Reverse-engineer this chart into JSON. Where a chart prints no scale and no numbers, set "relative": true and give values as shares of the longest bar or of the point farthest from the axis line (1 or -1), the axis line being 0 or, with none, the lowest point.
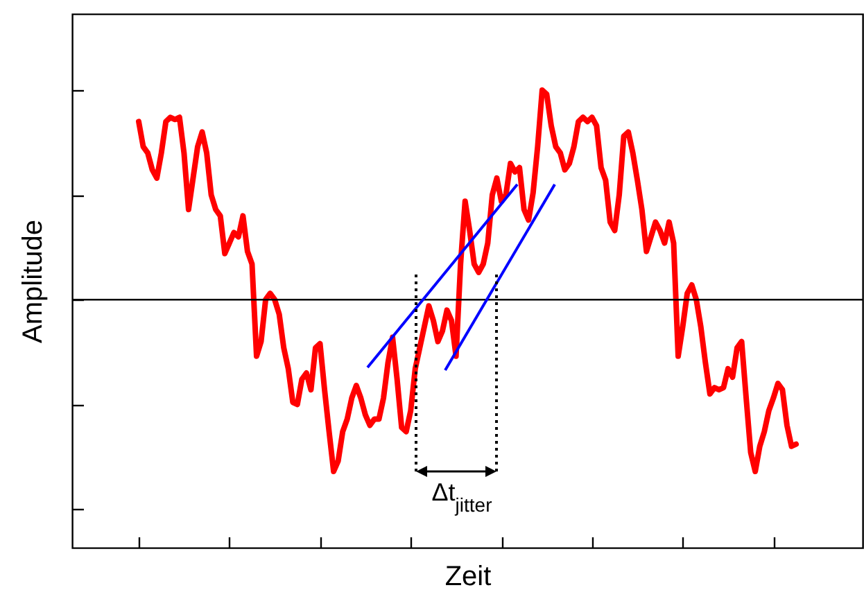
{
  "chart_data": {
    "type": "line",
    "relative": true,
    "xlabel": "Zeit",
    "ylabel": "Amplitude",
    "categories": [
      null,
      null,
      null,
      null,
      null,
      null,
      null,
      null,
      null,
      null,
      null,
      null,
      null,
      null,
      null,
      null,
      null,
      null,
      null,
      null,
      null,
      null,
      null,
      null,
      null,
      null,
      null,
      null,
      null,
      null,
      null,
      null,
      null,
      null,
      null,
      null,
      null,
      null,
      null,
      null,
      null,
      null,
      null,
      null,
      null,
      null,
      null,
      null,
      null,
      null,
      null,
      null,
      null,
      null,
      null,
      null,
      null,
      null,
      null,
      null,
      null,
      null,
      null,
      null,
      null,
      null,
      null,
      null,
      null,
      null,
      null,
      null,
      null,
      null,
      null,
      null,
      null,
      null,
      null,
      null,
      null,
      null,
      null,
      null,
      null,
      null,
      null,
      null,
      null,
      null,
      null,
      null,
      null,
      null,
      null,
      null,
      null,
      null,
      null,
      null,
      null,
      null,
      null,
      null,
      null,
      null,
      null,
      null,
      null,
      null,
      null,
      null,
      null,
      null,
      null,
      null,
      null,
      null,
      null,
      null,
      null,
      null,
      null,
      null,
      null,
      null,
      null,
      null,
      null,
      null,
      null,
      null,
      null,
      null,
      null,
      null,
      null,
      null,
      null,
      null,
      null,
      null,
      null,
      null,
      null,
      null
    ],
    "series": [
      {
        "color": "#ff0000",
        "values": [
          0.85,
          0.73,
          0.7,
          0.62,
          0.58,
          0.7,
          0.85,
          0.87,
          0.86,
          0.87,
          0.7,
          0.43,
          0.58,
          0.73,
          0.8,
          0.7,
          0.5,
          0.43,
          0.4,
          0.22,
          0.27,
          0.32,
          0.3,
          0.4,
          0.23,
          0.17,
          -0.27,
          -0.2,
          0,
          0.03,
          0,
          -0.07,
          -0.23,
          -0.33,
          -0.49,
          -0.5,
          -0.38,
          -0.35,
          -0.43,
          -0.23,
          -0.21,
          -0.43,
          -0.63,
          -0.82,
          -0.77,
          -0.63,
          -0.57,
          -0.47,
          -0.41,
          -0.47,
          -0.55,
          -0.6,
          -0.57,
          -0.57,
          -0.47,
          -0.3,
          -0.18,
          -0.38,
          -0.61,
          -0.63,
          -0.53,
          -0.33,
          -0.23,
          -0.13,
          -0.03,
          -0.1,
          -0.2,
          -0.15,
          -0.05,
          -0.1,
          -0.27,
          0.17,
          0.47,
          0.33,
          0.17,
          0.13,
          0.17,
          0.27,
          0.5,
          0.58,
          0.47,
          0.5,
          0.65,
          0.61,
          0.63,
          0.43,
          0.38,
          0.51,
          0.73,
          1.0,
          0.98,
          0.83,
          0.73,
          0.7,
          0.62,
          0.65,
          0.73,
          0.85,
          0.87,
          0.85,
          0.87,
          0.83,
          0.63,
          0.57,
          0.37,
          0.33,
          0.5,
          0.78,
          0.8,
          0.7,
          0.57,
          0.43,
          0.23,
          0.3,
          0.37,
          0.33,
          0.27,
          0.37,
          0.27,
          -0.27,
          -0.13,
          0.03,
          0.07,
          0,
          -0.13,
          -0.3,
          -0.45,
          -0.42,
          -0.43,
          -0.42,
          -0.33,
          -0.37,
          -0.23,
          -0.2,
          -0.47,
          -0.73,
          -0.82,
          -0.7,
          -0.63,
          -0.53,
          -0.47,
          -0.4,
          -0.43,
          -0.6,
          -0.7,
          -0.69
        ]
      }
    ],
    "ref_lines": [
      {
        "axis": "y",
        "value": 0,
        "color": "#000000"
      }
    ],
    "annotations": [
      "Δt$_{jitter}$"
    ],
    "line_style": "solid",
    "marker": "none",
    "grid": false
  }
}
